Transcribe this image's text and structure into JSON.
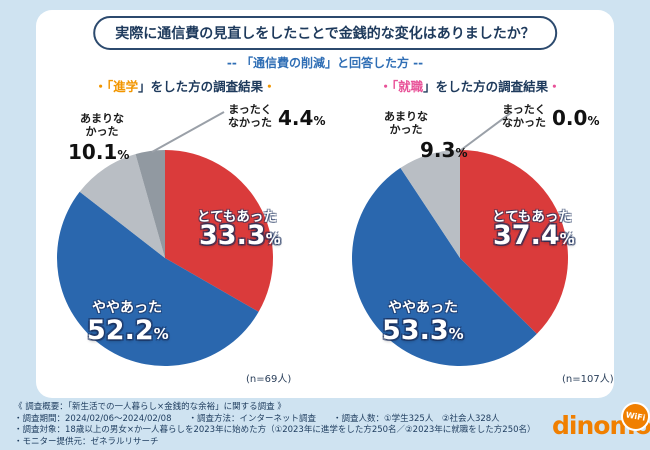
{
  "title": "実際に通信費の見直しをしたことで金銭的な変化はありましたか？",
  "subtitle": "-- 「通信費の削減」と回答した方 --",
  "charts": [
    {
      "header": {
        "pre": "・「",
        "highlight": "進学",
        "post": "」をした方の調査結果",
        "dot": "・",
        "accent": "#f29600"
      },
      "n_label": "(n=69人)"
    },
    {
      "header": {
        "pre": "・「",
        "highlight": "就職",
        "post": "」をした方の調査結果",
        "dot": "・",
        "accent": "#e85298"
      },
      "n_label": "(n=107人)"
    }
  ],
  "chart_data": [
    {
      "type": "pie",
      "title": "「進学」をした方の調査結果",
      "categories": [
        "とてもあった",
        "ややあった",
        "あまりなかった",
        "まったくなかった"
      ],
      "values": [
        33.3,
        52.2,
        10.1,
        4.4
      ],
      "display": [
        "33.3",
        "52.2",
        "10.1",
        "4.4"
      ],
      "unit": "%",
      "colors": [
        "#da3b3b",
        "#2a67ae",
        "#b9bec4",
        "#9199a1"
      ],
      "start_angle": "12-oclock",
      "direction": "clockwise",
      "n": 69
    },
    {
      "type": "pie",
      "title": "「就職」をした方の調査結果",
      "categories": [
        "とてもあった",
        "ややあった",
        "あまりなかった",
        "まったくなかった"
      ],
      "values": [
        37.4,
        53.3,
        9.3,
        0.0
      ],
      "display": [
        "37.4",
        "53.3",
        "9.3",
        "0.0"
      ],
      "unit": "%",
      "colors": [
        "#da3b3b",
        "#2a67ae",
        "#b9bec4",
        "#9199a1"
      ],
      "start_angle": "12-oclock",
      "direction": "clockwise",
      "n": 107
    }
  ],
  "footer": {
    "lines": [
      "《 調査概要：「新生活での一人暮らし×金銭的な余裕」に関する調査 》",
      "・調査期間：2024/02/06～2024/02/08　　・調査方法：インターネット調査　　・調査人数：①学生325人　②社会人328人",
      "・調査対象：18歳以上の男女×か一人暮らしを2023年に始めた方（①2023年に進学をした方250名／②2023年に就職をした方250名）",
      "・モニター提供元：ゼネラルリサーチ"
    ]
  },
  "logo": {
    "text": "dinomo",
    "badge": "WiFi"
  }
}
